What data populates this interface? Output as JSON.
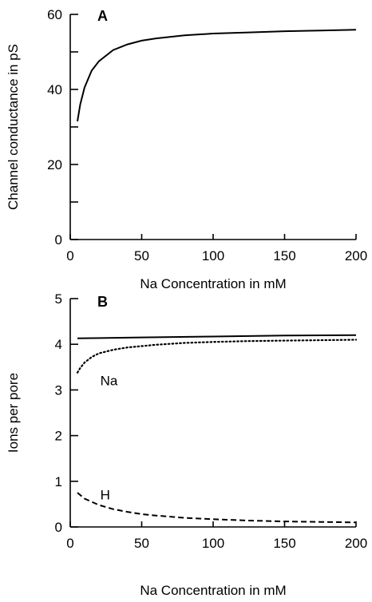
{
  "chart_data": [
    {
      "type": "line",
      "panel_label": "A",
      "xlabel": "Na Concentration in mM",
      "ylabel": "Channel conductance in pS",
      "xlim": [
        0,
        200
      ],
      "ylim": [
        0,
        60
      ],
      "xticks": [
        0,
        50,
        100,
        150,
        200
      ],
      "yticks": [
        0,
        20,
        40,
        60
      ],
      "yminor_ticks": [
        10,
        30,
        50
      ],
      "grid": false,
      "series": [
        {
          "style": "solid",
          "x": [
            5,
            7,
            10,
            15,
            20,
            30,
            40,
            50,
            60,
            80,
            100,
            125,
            150,
            175,
            200
          ],
          "y": [
            31.5,
            36,
            40.5,
            45,
            47.5,
            50.5,
            52,
            53,
            53.6,
            54.4,
            54.9,
            55.2,
            55.5,
            55.7,
            55.9
          ]
        }
      ]
    },
    {
      "type": "line",
      "panel_label": "B",
      "xlabel": "Na Concentration in mM",
      "ylabel": "Ions per pore",
      "xlim": [
        0,
        200
      ],
      "ylim": [
        0,
        5
      ],
      "xticks": [
        0,
        50,
        100,
        150,
        200
      ],
      "yticks": [
        0,
        1,
        2,
        3,
        4,
        5
      ],
      "grid": false,
      "annotations": [
        {
          "text": "Na",
          "x": 21,
          "y": 3.1
        },
        {
          "text": "H",
          "x": 21,
          "y": 0.6
        }
      ],
      "series": [
        {
          "style": "solid",
          "x": [
            5,
            50,
            100,
            150,
            200
          ],
          "y": [
            4.13,
            4.15,
            4.17,
            4.19,
            4.2
          ]
        },
        {
          "name": "Na",
          "style": "dotted",
          "x": [
            5,
            7,
            10,
            15,
            20,
            30,
            40,
            50,
            60,
            80,
            100,
            125,
            150,
            175,
            200
          ],
          "y": [
            3.38,
            3.48,
            3.6,
            3.72,
            3.8,
            3.88,
            3.93,
            3.96,
            3.99,
            4.03,
            4.05,
            4.07,
            4.08,
            4.09,
            4.1
          ]
        },
        {
          "name": "H",
          "style": "dashed",
          "x": [
            5,
            10,
            20,
            30,
            40,
            50,
            60,
            80,
            100,
            125,
            150,
            175,
            200
          ],
          "y": [
            0.75,
            0.62,
            0.48,
            0.39,
            0.33,
            0.28,
            0.25,
            0.2,
            0.17,
            0.14,
            0.12,
            0.11,
            0.1
          ]
        }
      ]
    }
  ]
}
